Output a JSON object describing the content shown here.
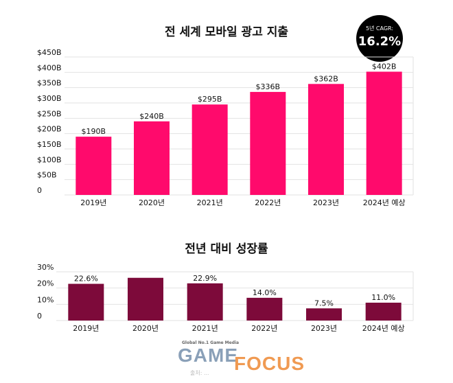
{
  "chart_data": [
    {
      "type": "bar",
      "title": "전 세계 모바일 광고 지출",
      "categories": [
        "2019년",
        "2020년",
        "2021년",
        "2022년",
        "2023년",
        "2024년 예상"
      ],
      "values": [
        190,
        240,
        295,
        336,
        362,
        402
      ],
      "data_labels": [
        "$190B",
        "$240B",
        "$295B",
        "$336B",
        "$362B",
        "$402B"
      ],
      "ylim": [
        0,
        450
      ],
      "y_ticks": [
        0,
        50,
        100,
        150,
        200,
        250,
        300,
        350,
        400,
        450
      ],
      "y_tick_labels": [
        "0",
        "$50B",
        "$100B",
        "$150B",
        "$200B",
        "$250B",
        "$300B",
        "$350B",
        "$400B",
        "$450B"
      ],
      "grid": true,
      "bar_color": "#ff0a6c"
    },
    {
      "type": "bar",
      "title": "전년 대비 성장률",
      "categories": [
        "2019년",
        "2020년",
        "2021년",
        "2022년",
        "2023년",
        "2024년 예상"
      ],
      "values": [
        22.6,
        26.3,
        22.9,
        14.0,
        7.5,
        11.0
      ],
      "data_labels": [
        "22.6%",
        "",
        "22.9%",
        "14.0%",
        "7.5%",
        "11.0%"
      ],
      "ylim": [
        0,
        30
      ],
      "y_ticks": [
        0,
        10,
        20,
        30
      ],
      "y_tick_labels": [
        "0",
        "10%",
        "20%",
        "30%"
      ],
      "grid": true,
      "bar_color": "#7d0a3a"
    }
  ],
  "badge": {
    "label": "5년 CAGR:",
    "value": "16.2%"
  },
  "logo": {
    "tagline": "Global No.1 Game Media",
    "word1": "GAME",
    "word2": "FOCUS",
    "source": "출처: ..."
  }
}
